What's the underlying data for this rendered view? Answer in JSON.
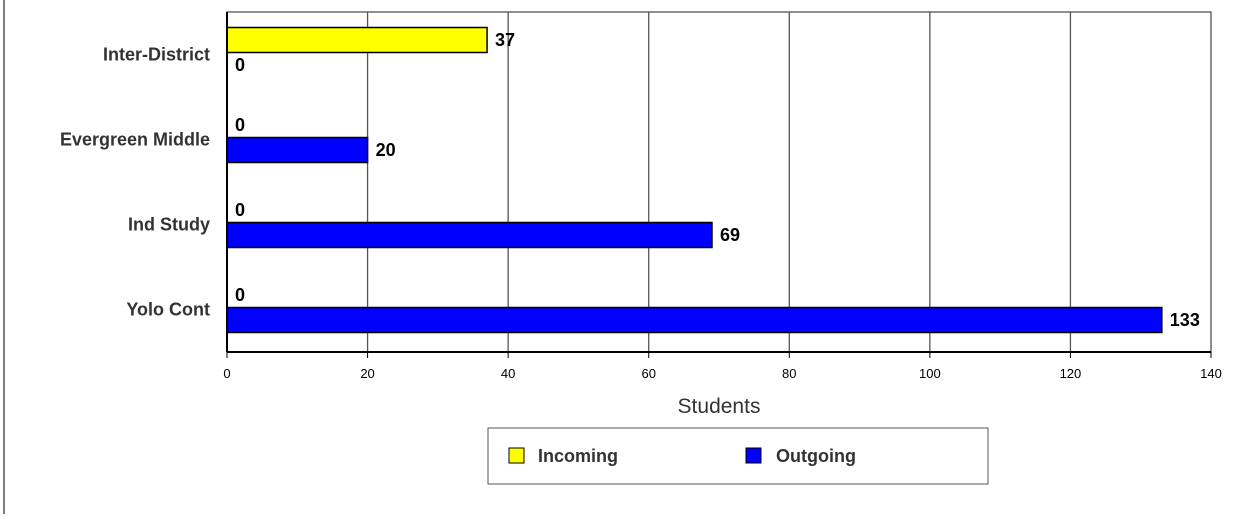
{
  "chart_data": {
    "type": "bar",
    "orientation": "horizontal",
    "categories": [
      "Inter-District",
      "Evergreen Middle",
      "Ind Study",
      "Yolo Cont"
    ],
    "series": [
      {
        "name": "Incoming",
        "color": "#ffff00",
        "values": [
          37,
          0,
          0,
          0
        ]
      },
      {
        "name": "Outgoing",
        "color": "#0000ff",
        "values": [
          0,
          20,
          69,
          133
        ]
      }
    ],
    "xlabel": "Students",
    "xlim": [
      0,
      140
    ],
    "xticks": [
      "0",
      "20",
      "40",
      "60",
      "80",
      "100",
      "120",
      "140"
    ],
    "grid": true,
    "legend_position": "bottom-center"
  }
}
